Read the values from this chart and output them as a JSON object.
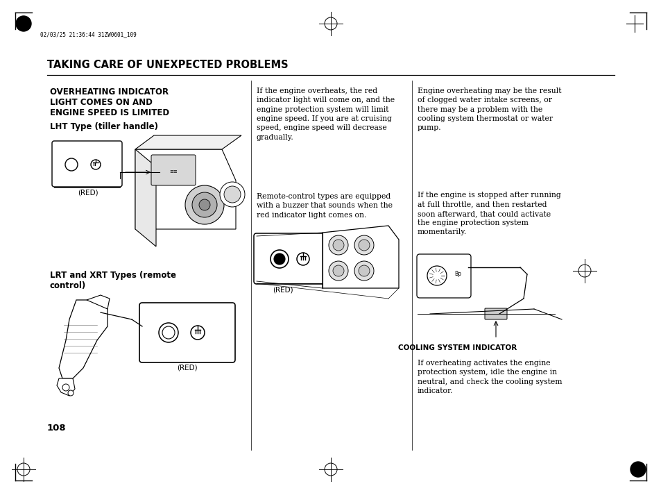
{
  "background_color": "#ffffff",
  "page_width": 9.54,
  "page_height": 7.1,
  "header_stamp": "02/03/25 21:36:44 31ZW0601_109",
  "title": "TAKING CARE OF UNEXPECTED PROBLEMS",
  "section_heading": "OVERHEATING INDICATOR\nLIGHT COMES ON AND\nENGINE SPEED IS LIMITED",
  "subsection1": "LHT Type (tiller handle)",
  "subsection2": "LRT and XRT Types (remote\ncontrol)",
  "col1_text1": "If the engine overheats, the red\nindicator light will come on, and the\nengine protection system will limit\nengine speed. If you are at cruising\nspeed, engine speed will decrease\ngradually.",
  "col1_text2": "Remote-control types are equipped\nwith a buzzer that sounds when the\nred indicator light comes on.",
  "col2_text1": "Engine overheating may be the result\nof clogged water intake screens, or\nthere may be a problem with the\ncooling system thermostat or water\npump.",
  "col2_text2": "If the engine is stopped after running\nat full throttle, and then restarted\nsoon afterward, that could activate\nthe engine protection system\nmomentarily.",
  "cooling_label": "COOLING SYSTEM INDICATOR",
  "col2_text3": "If overheating activates the engine\nprotection system, idle the engine in\nneutral, and check the cooling system\nindicator.",
  "page_number": "108",
  "red_label": "(RED)"
}
